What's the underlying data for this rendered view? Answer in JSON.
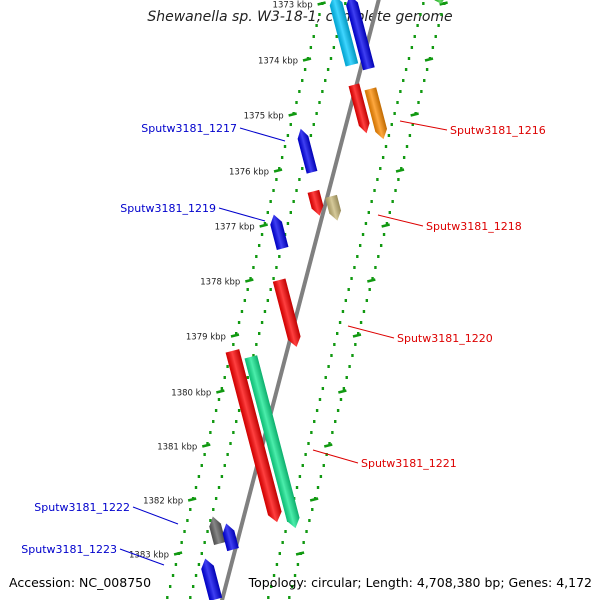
{
  "title": "Shewanella sp. W3-18-1, complete genome",
  "footer": {
    "accession": "Accession: NC_008750",
    "topology": "Topology: circular; Length: 4,708,380 bp; Genes: 4,172"
  },
  "ticks": [
    {
      "label": "1373 kbp"
    },
    {
      "label": "1374 kbp"
    },
    {
      "label": "1375 kbp"
    },
    {
      "label": "1376 kbp"
    },
    {
      "label": "1377 kbp"
    },
    {
      "label": "1378 kbp"
    },
    {
      "label": "1379 kbp"
    },
    {
      "label": "1380 kbp"
    },
    {
      "label": "1381 kbp"
    },
    {
      "label": "1382 kbp"
    },
    {
      "label": "1383 kbp"
    }
  ],
  "genes": [
    {
      "name": "",
      "strand": "plus",
      "color": "#00c8ff"
    },
    {
      "name": "",
      "strand": "plus",
      "color": "#0000ee"
    },
    {
      "name": "",
      "strand": "minus",
      "color": "#30d030"
    },
    {
      "name": "Sputw3181_1216",
      "strand": "minus",
      "color": "#ff0000"
    },
    {
      "name": "",
      "strand": "minus",
      "color": "#ff8c00"
    },
    {
      "name": "Sputw3181_1217",
      "strand": "plus",
      "color": "#0000ee"
    },
    {
      "name": "Sputw3181_1218",
      "strand": "minus",
      "color": "#ff0000"
    },
    {
      "name": "",
      "strand": "minus",
      "color": "#c8b878"
    },
    {
      "name": "Sputw3181_1219",
      "strand": "plus",
      "color": "#0000ee"
    },
    {
      "name": "Sputw3181_1220",
      "strand": "minus",
      "color": "#ff0000"
    },
    {
      "name": "Sputw3181_1221",
      "strand": "minus",
      "color": "#ff0000"
    },
    {
      "name": "",
      "strand": "minus",
      "color": "#10e890"
    },
    {
      "name": "Sputw3181_1222",
      "strand": "plus",
      "color": "#606060"
    },
    {
      "name": "",
      "strand": "plus",
      "color": "#0000ee"
    },
    {
      "name": "Sputw3181_1223",
      "strand": "plus",
      "color": "#0000ee"
    }
  ],
  "colors": {
    "plus_label": "#0000cc",
    "minus_label": "#dd0000",
    "backbone": "#808080",
    "ruler_dots": "#119911"
  }
}
